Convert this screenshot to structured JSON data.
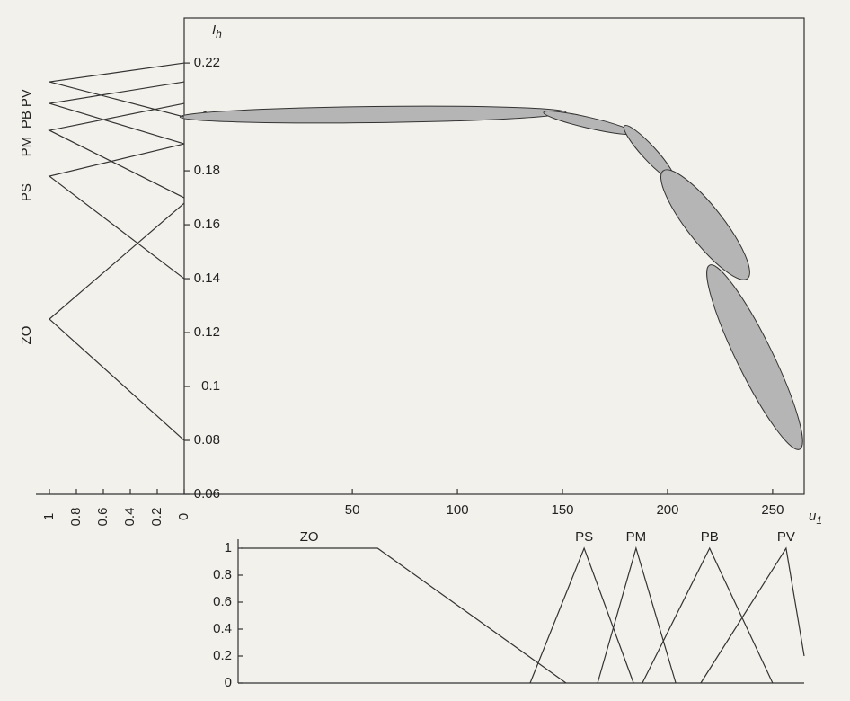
{
  "chart_data": [
    {
      "type": "ellipse",
      "y_label": {
        "text": "I",
        "sub": "h"
      },
      "x_label": {
        "text": "u",
        "sub": "1"
      },
      "xlim": [
        -30,
        265
      ],
      "ylim": [
        0.06,
        0.2367
      ],
      "xticks": [
        50,
        100,
        150,
        200,
        250
      ],
      "yticks": [
        0.06,
        0.08,
        0.1,
        0.12,
        0.14,
        0.16,
        0.18,
        0.2,
        0.22
      ],
      "color": "#b5b5b5",
      "ellipses": [
        {
          "x": [
            -32,
            151.7
          ],
          "y": [
            0.2,
            0.2017
          ],
          "width": 0.006
        },
        {
          "x": [
            141,
            183.8
          ],
          "y": [
            0.2017,
            0.194
          ],
          "width": 0.004
        },
        {
          "x": [
            179.5,
            203
          ],
          "y": [
            0.1967,
            0.1767
          ],
          "width": 0.0053
        },
        {
          "x": [
            197.9,
            238
          ],
          "y": [
            0.18,
            0.14
          ],
          "width": 0.0133
        },
        {
          "x": [
            220,
            262.9
          ],
          "y": [
            0.145,
            0.0767
          ],
          "width": 0.0133
        }
      ]
    },
    {
      "type": "membership-vertical",
      "xlim": [
        1,
        0
      ],
      "ylim": [
        0.06,
        0.2367
      ],
      "xticks": [
        1,
        0.8,
        0.6,
        0.4,
        0.2,
        0
      ],
      "series": [
        {
          "name": "ZO",
          "x": [
            0,
            1,
            0
          ],
          "y": [
            0.08,
            0.125,
            0.168
          ]
        },
        {
          "name": "PS",
          "x": [
            0,
            1,
            0
          ],
          "y": [
            0.14,
            0.178,
            0.19
          ]
        },
        {
          "name": "PM",
          "x": [
            0,
            1,
            0
          ],
          "y": [
            0.17,
            0.195,
            0.205
          ]
        },
        {
          "name": "PB",
          "x": [
            0,
            1,
            0
          ],
          "y": [
            0.19,
            0.205,
            0.213
          ]
        },
        {
          "name": "PV",
          "x": [
            0,
            1,
            0
          ],
          "y": [
            0.2,
            0.213,
            0.22
          ]
        }
      ]
    },
    {
      "type": "membership",
      "xlim": [
        -30,
        265
      ],
      "ylim": [
        0,
        1
      ],
      "yticks": [
        0,
        0.2,
        0.4,
        0.6,
        0.8,
        1
      ],
      "series": [
        {
          "name": "ZO",
          "x": [
            -3,
            62,
            151.7
          ],
          "y": [
            1,
            1,
            0
          ]
        },
        {
          "name": "PS",
          "x": [
            134.6,
            160.3,
            183.8
          ],
          "y": [
            0,
            1,
            0
          ]
        },
        {
          "name": "PM",
          "x": [
            166.7,
            185,
            203.9
          ],
          "y": [
            0,
            1,
            0
          ]
        },
        {
          "name": "PB",
          "x": [
            188,
            220,
            250
          ],
          "y": [
            0,
            1,
            0
          ]
        },
        {
          "name": "PV",
          "x": [
            215.8,
            256.4,
            265
          ],
          "y": [
            0,
            1,
            0.2
          ]
        }
      ]
    }
  ]
}
